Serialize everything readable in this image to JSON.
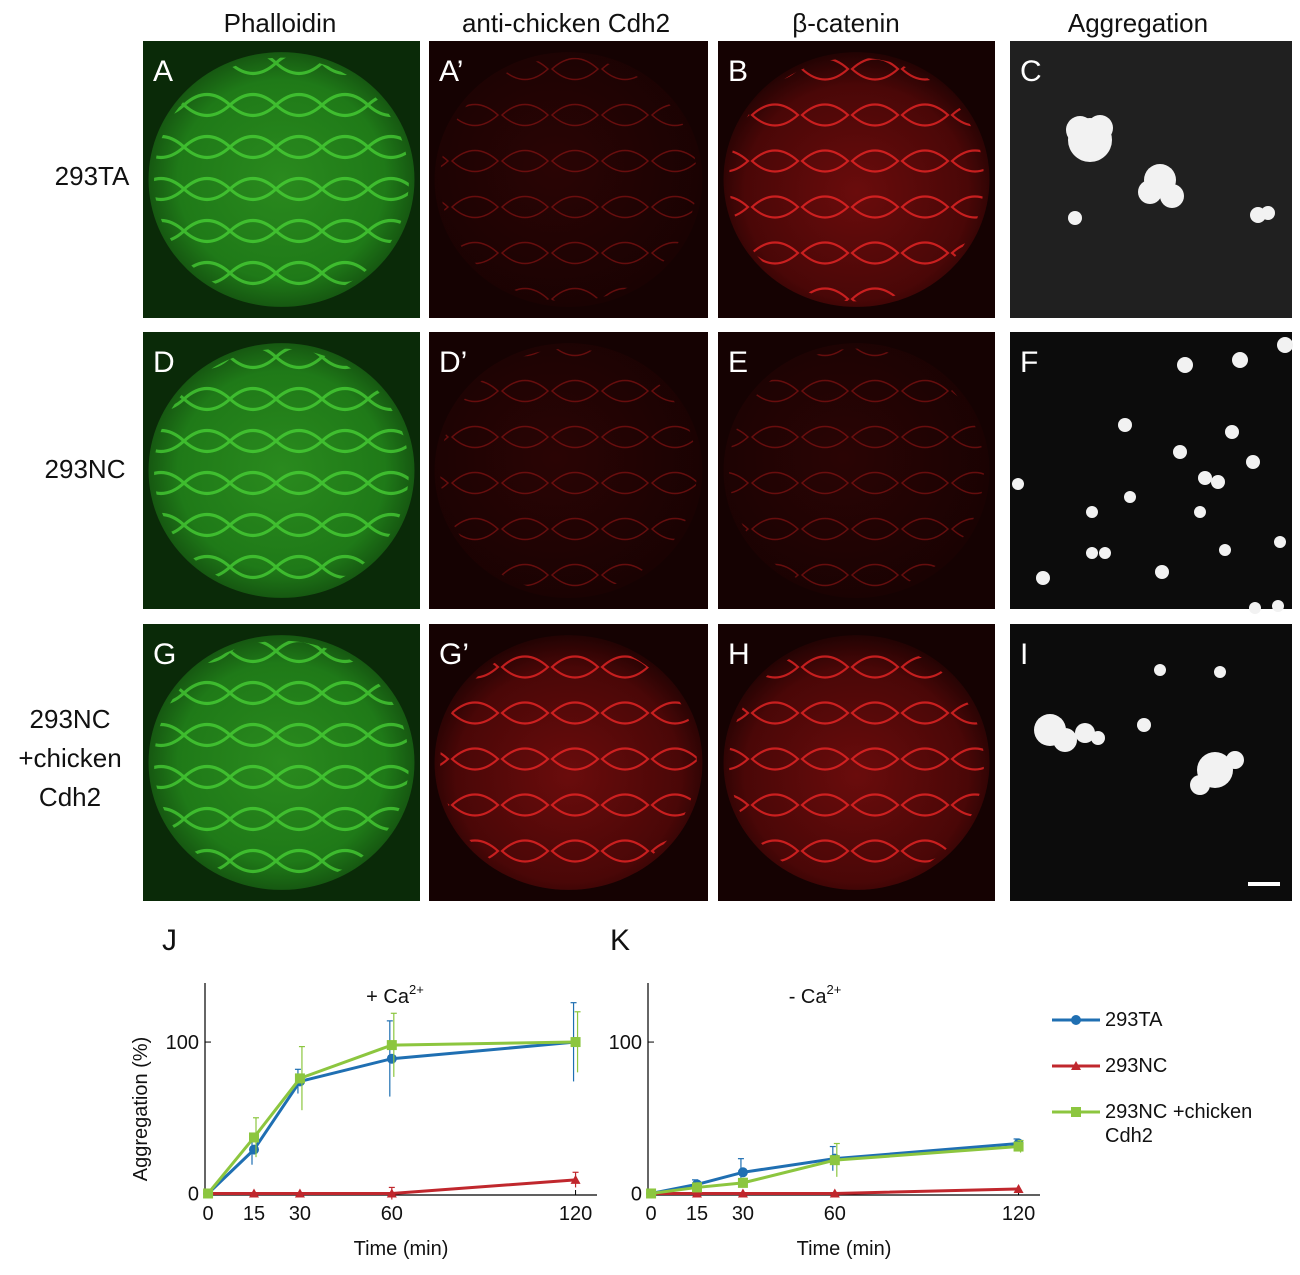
{
  "figure": {
    "column_headers": [
      "Phalloidin",
      "anti-chicken Cdh2",
      "β-catenin",
      "Aggregation"
    ],
    "rows": [
      {
        "lines": [
          "293TA"
        ]
      },
      {
        "lines": [
          "293NC"
        ]
      },
      {
        "lines": [
          "293NC",
          "+chicken",
          "Cdh2"
        ]
      }
    ],
    "panel_labels": [
      [
        "A",
        "A’",
        "B",
        "C"
      ],
      [
        "D",
        "D’",
        "E",
        "F"
      ],
      [
        "G",
        "G’",
        "H",
        "I"
      ]
    ]
  },
  "chart_data": [
    {
      "type": "line",
      "panel_label": "J",
      "title": "+ Ca",
      "title_superscript": "2+",
      "x_label": "Time (min)",
      "y_label": "Aggregation (%)",
      "x": [
        0,
        15,
        30,
        60,
        120
      ],
      "xlim": [
        -1,
        127
      ],
      "xticks": [
        0,
        15,
        30,
        60,
        120
      ],
      "ylim": [
        -1,
        139
      ],
      "yticks": [
        0,
        100
      ],
      "legend": "right",
      "series": [
        {
          "name": "293TA",
          "color": "#1f6fb2",
          "marker": "circle",
          "values": [
            0,
            29,
            74,
            89,
            100
          ],
          "errors": [
            0,
            10,
            8,
            25,
            26
          ]
        },
        {
          "name": "293NC",
          "color": "#c0272d",
          "marker": "triangle",
          "values": [
            0,
            0,
            0,
            0,
            9
          ],
          "errors": [
            0,
            0,
            0,
            4,
            5
          ]
        },
        {
          "name": "293NC +chicken Cdh2",
          "color": "#8cc63f",
          "marker": "square",
          "values": [
            0,
            37,
            76,
            98,
            100
          ],
          "errors": [
            0,
            13,
            21,
            21,
            20
          ]
        }
      ]
    },
    {
      "type": "line",
      "panel_label": "K",
      "title": "- Ca",
      "title_superscript": "2+",
      "x_label": "Time (min)",
      "x": [
        0,
        15,
        30,
        60,
        120
      ],
      "xlim": [
        -1,
        127
      ],
      "xticks": [
        0,
        15,
        30,
        60,
        120
      ],
      "ylim": [
        -1,
        139
      ],
      "yticks": [
        0,
        100
      ],
      "series": [
        {
          "name": "293TA",
          "color": "#1f6fb2",
          "marker": "circle",
          "values": [
            0,
            6,
            14,
            23,
            33
          ],
          "errors": [
            0,
            3,
            9,
            8,
            3
          ]
        },
        {
          "name": "293NC",
          "color": "#c0272d",
          "marker": "triangle",
          "values": [
            0,
            0,
            0,
            0,
            3
          ],
          "errors": [
            0,
            0,
            0,
            0,
            0
          ]
        },
        {
          "name": "293NC +chicken Cdh2",
          "color": "#8cc63f",
          "marker": "square",
          "values": [
            0,
            4,
            7,
            22,
            31
          ],
          "errors": [
            0,
            3,
            3,
            11,
            4
          ]
        }
      ]
    }
  ]
}
